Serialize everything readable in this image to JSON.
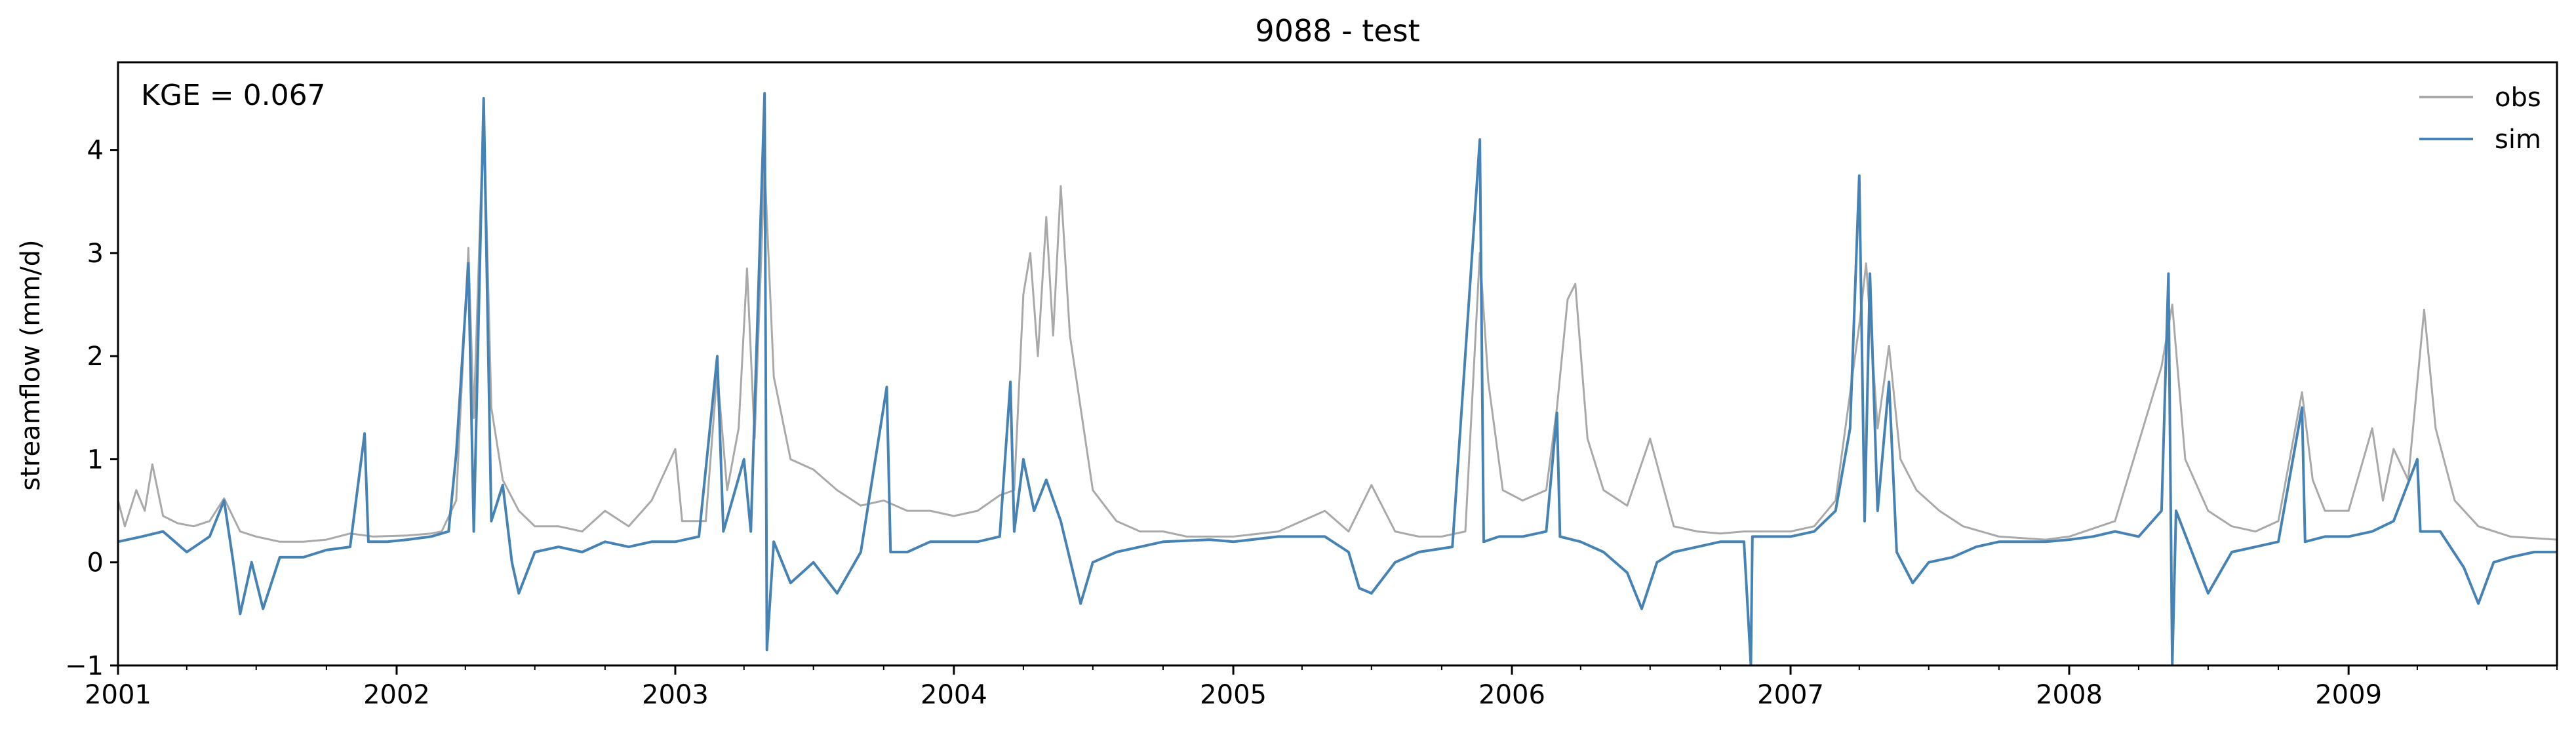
{
  "chart_data": {
    "type": "line",
    "title": "9088 - test",
    "xlabel": "",
    "ylabel": "streamflow (mm/d)",
    "annotation": "KGE = 0.067",
    "xlim": [
      "2001-01-01",
      "2009-10-01"
    ],
    "ylim": [
      -1,
      4.85
    ],
    "y_ticks": [
      -1,
      0,
      1,
      2,
      3,
      4
    ],
    "x_ticks": [
      {
        "date": "2001-01-01",
        "label": "2001"
      },
      {
        "date": "2002-01-01",
        "label": "2002"
      },
      {
        "date": "2003-01-01",
        "label": "2003"
      },
      {
        "date": "2004-01-01",
        "label": "2004"
      },
      {
        "date": "2005-01-01",
        "label": "2005"
      },
      {
        "date": "2006-01-01",
        "label": "2006"
      },
      {
        "date": "2007-01-01",
        "label": "2007"
      },
      {
        "date": "2008-01-01",
        "label": "2008"
      },
      {
        "date": "2009-01-01",
        "label": "2009"
      }
    ],
    "grid": false,
    "legend": "top-right",
    "series": [
      {
        "name": "obs",
        "color": "#a9a9a9",
        "points": [
          [
            "2001-01-01",
            0.6
          ],
          [
            "2001-01-10",
            0.35
          ],
          [
            "2001-01-25",
            0.7
          ],
          [
            "2001-02-05",
            0.5
          ],
          [
            "2001-02-15",
            0.95
          ],
          [
            "2001-03-01",
            0.45
          ],
          [
            "2001-03-20",
            0.38
          ],
          [
            "2001-04-10",
            0.35
          ],
          [
            "2001-05-01",
            0.4
          ],
          [
            "2001-05-20",
            0.62
          ],
          [
            "2001-06-10",
            0.3
          ],
          [
            "2001-07-01",
            0.25
          ],
          [
            "2001-08-01",
            0.2
          ],
          [
            "2001-09-01",
            0.2
          ],
          [
            "2001-10-01",
            0.22
          ],
          [
            "2001-11-01",
            0.28
          ],
          [
            "2001-12-01",
            0.25
          ],
          [
            "2002-01-15",
            0.26
          ],
          [
            "2002-02-15",
            0.28
          ],
          [
            "2002-03-01",
            0.3
          ],
          [
            "2002-03-20",
            0.6
          ],
          [
            "2002-04-05",
            3.05
          ],
          [
            "2002-04-12",
            1.4
          ],
          [
            "2002-04-25",
            4.4
          ],
          [
            "2002-05-05",
            1.5
          ],
          [
            "2002-05-20",
            0.8
          ],
          [
            "2002-06-10",
            0.5
          ],
          [
            "2002-07-01",
            0.35
          ],
          [
            "2002-08-01",
            0.35
          ],
          [
            "2002-09-01",
            0.3
          ],
          [
            "2002-10-01",
            0.5
          ],
          [
            "2002-11-01",
            0.35
          ],
          [
            "2002-12-01",
            0.6
          ],
          [
            "2003-01-01",
            1.1
          ],
          [
            "2003-01-10",
            0.4
          ],
          [
            "2003-02-10",
            0.4
          ],
          [
            "2003-02-25",
            1.85
          ],
          [
            "2003-03-10",
            0.7
          ],
          [
            "2003-03-25",
            1.3
          ],
          [
            "2003-04-05",
            2.85
          ],
          [
            "2003-04-15",
            1.2
          ],
          [
            "2003-04-28",
            3.85
          ],
          [
            "2003-05-10",
            1.8
          ],
          [
            "2003-06-01",
            1.0
          ],
          [
            "2003-07-01",
            0.9
          ],
          [
            "2003-08-01",
            0.7
          ],
          [
            "2003-09-01",
            0.55
          ],
          [
            "2003-10-01",
            0.6
          ],
          [
            "2003-11-01",
            0.5
          ],
          [
            "2003-12-01",
            0.5
          ],
          [
            "2004-01-01",
            0.45
          ],
          [
            "2004-02-01",
            0.5
          ],
          [
            "2004-03-01",
            0.65
          ],
          [
            "2004-03-20",
            0.7
          ],
          [
            "2004-04-01",
            2.6
          ],
          [
            "2004-04-10",
            3.0
          ],
          [
            "2004-04-20",
            2.0
          ],
          [
            "2004-05-01",
            3.35
          ],
          [
            "2004-05-10",
            2.2
          ],
          [
            "2004-05-20",
            3.65
          ],
          [
            "2004-06-01",
            2.2
          ],
          [
            "2004-07-01",
            0.7
          ],
          [
            "2004-08-01",
            0.4
          ],
          [
            "2004-09-01",
            0.3
          ],
          [
            "2004-10-01",
            0.3
          ],
          [
            "2004-11-01",
            0.25
          ],
          [
            "2004-12-01",
            0.25
          ],
          [
            "2005-01-01",
            0.25
          ],
          [
            "2005-03-01",
            0.3
          ],
          [
            "2005-05-01",
            0.5
          ],
          [
            "2005-06-01",
            0.3
          ],
          [
            "2005-07-01",
            0.75
          ],
          [
            "2005-08-01",
            0.3
          ],
          [
            "2005-09-01",
            0.25
          ],
          [
            "2005-10-01",
            0.25
          ],
          [
            "2005-11-01",
            0.3
          ],
          [
            "2005-11-20",
            3.0
          ],
          [
            "2005-12-01",
            1.75
          ],
          [
            "2005-12-20",
            0.7
          ],
          [
            "2006-01-15",
            0.6
          ],
          [
            "2006-02-15",
            0.7
          ],
          [
            "2006-03-01",
            1.5
          ],
          [
            "2006-03-15",
            2.55
          ],
          [
            "2006-03-25",
            2.7
          ],
          [
            "2006-04-10",
            1.2
          ],
          [
            "2006-05-01",
            0.7
          ],
          [
            "2006-06-01",
            0.55
          ],
          [
            "2006-07-01",
            1.2
          ],
          [
            "2006-08-01",
            0.35
          ],
          [
            "2006-09-01",
            0.3
          ],
          [
            "2006-10-01",
            0.28
          ],
          [
            "2006-11-01",
            0.3
          ],
          [
            "2006-12-01",
            0.3
          ],
          [
            "2007-01-01",
            0.3
          ],
          [
            "2007-02-01",
            0.35
          ],
          [
            "2007-03-01",
            0.6
          ],
          [
            "2007-04-01",
            2.3
          ],
          [
            "2007-04-10",
            2.9
          ],
          [
            "2007-04-25",
            1.3
          ],
          [
            "2007-05-10",
            2.1
          ],
          [
            "2007-05-25",
            1.0
          ],
          [
            "2007-06-15",
            0.7
          ],
          [
            "2007-07-15",
            0.5
          ],
          [
            "2007-08-15",
            0.35
          ],
          [
            "2007-10-01",
            0.25
          ],
          [
            "2007-12-01",
            0.22
          ],
          [
            "2008-01-01",
            0.25
          ],
          [
            "2008-03-01",
            0.4
          ],
          [
            "2008-05-01",
            1.9
          ],
          [
            "2008-05-15",
            2.5
          ],
          [
            "2008-06-01",
            1.0
          ],
          [
            "2008-07-01",
            0.5
          ],
          [
            "2008-08-01",
            0.35
          ],
          [
            "2008-09-01",
            0.3
          ],
          [
            "2008-10-01",
            0.4
          ],
          [
            "2008-11-01",
            1.65
          ],
          [
            "2008-11-15",
            0.8
          ],
          [
            "2008-12-01",
            0.5
          ],
          [
            "2009-01-01",
            0.5
          ],
          [
            "2009-02-01",
            1.3
          ],
          [
            "2009-02-15",
            0.6
          ],
          [
            "2009-03-01",
            1.1
          ],
          [
            "2009-03-20",
            0.8
          ],
          [
            "2009-04-10",
            2.45
          ],
          [
            "2009-04-25",
            1.3
          ],
          [
            "2009-05-20",
            0.6
          ],
          [
            "2009-06-20",
            0.35
          ],
          [
            "2009-08-01",
            0.25
          ],
          [
            "2009-10-01",
            0.22
          ]
        ]
      },
      {
        "name": "sim",
        "color": "#4682b4",
        "points": [
          [
            "2001-01-01",
            0.2
          ],
          [
            "2001-02-01",
            0.25
          ],
          [
            "2001-03-01",
            0.3
          ],
          [
            "2001-04-01",
            0.1
          ],
          [
            "2001-05-01",
            0.25
          ],
          [
            "2001-05-20",
            0.6
          ],
          [
            "2001-06-01",
            0.0
          ],
          [
            "2001-06-10",
            -0.5
          ],
          [
            "2001-06-25",
            0.0
          ],
          [
            "2001-07-10",
            -0.45
          ],
          [
            "2001-08-01",
            0.05
          ],
          [
            "2001-09-01",
            0.05
          ],
          [
            "2001-10-01",
            0.12
          ],
          [
            "2001-11-01",
            0.15
          ],
          [
            "2001-11-20",
            1.25
          ],
          [
            "2001-11-25",
            0.2
          ],
          [
            "2001-12-20",
            0.2
          ],
          [
            "2002-01-15",
            0.22
          ],
          [
            "2002-02-15",
            0.25
          ],
          [
            "2002-03-10",
            0.3
          ],
          [
            "2002-03-20",
            1.05
          ],
          [
            "2002-04-05",
            2.9
          ],
          [
            "2002-04-12",
            0.3
          ],
          [
            "2002-04-25",
            4.5
          ],
          [
            "2002-05-05",
            0.4
          ],
          [
            "2002-05-20",
            0.75
          ],
          [
            "2002-06-01",
            0.0
          ],
          [
            "2002-06-10",
            -0.3
          ],
          [
            "2002-07-01",
            0.1
          ],
          [
            "2002-08-01",
            0.15
          ],
          [
            "2002-09-01",
            0.1
          ],
          [
            "2002-10-01",
            0.2
          ],
          [
            "2002-11-01",
            0.15
          ],
          [
            "2002-12-01",
            0.2
          ],
          [
            "2003-01-01",
            0.2
          ],
          [
            "2003-02-01",
            0.25
          ],
          [
            "2003-02-25",
            2.0
          ],
          [
            "2003-03-05",
            0.3
          ],
          [
            "2003-04-01",
            1.0
          ],
          [
            "2003-04-10",
            0.3
          ],
          [
            "2003-04-28",
            4.55
          ],
          [
            "2003-05-01",
            -0.85
          ],
          [
            "2003-05-10",
            0.2
          ],
          [
            "2003-06-01",
            -0.2
          ],
          [
            "2003-07-01",
            0.0
          ],
          [
            "2003-08-01",
            -0.3
          ],
          [
            "2003-09-01",
            0.1
          ],
          [
            "2003-10-05",
            1.7
          ],
          [
            "2003-10-10",
            0.1
          ],
          [
            "2003-11-01",
            0.1
          ],
          [
            "2003-12-01",
            0.2
          ],
          [
            "2004-01-01",
            0.2
          ],
          [
            "2004-02-01",
            0.2
          ],
          [
            "2004-03-01",
            0.25
          ],
          [
            "2004-03-15",
            1.75
          ],
          [
            "2004-03-20",
            0.3
          ],
          [
            "2004-04-01",
            1.0
          ],
          [
            "2004-04-15",
            0.5
          ],
          [
            "2004-05-01",
            0.8
          ],
          [
            "2004-05-20",
            0.4
          ],
          [
            "2004-06-15",
            -0.4
          ],
          [
            "2004-07-01",
            0.0
          ],
          [
            "2004-08-01",
            0.1
          ],
          [
            "2004-09-01",
            0.15
          ],
          [
            "2004-10-01",
            0.2
          ],
          [
            "2004-12-01",
            0.22
          ],
          [
            "2005-01-01",
            0.2
          ],
          [
            "2005-03-01",
            0.25
          ],
          [
            "2005-05-01",
            0.25
          ],
          [
            "2005-06-01",
            0.1
          ],
          [
            "2005-06-15",
            -0.25
          ],
          [
            "2005-07-01",
            -0.3
          ],
          [
            "2005-08-01",
            0.0
          ],
          [
            "2005-09-01",
            0.1
          ],
          [
            "2005-10-15",
            0.15
          ],
          [
            "2005-11-20",
            4.1
          ],
          [
            "2005-11-25",
            0.2
          ],
          [
            "2005-12-15",
            0.25
          ],
          [
            "2006-01-15",
            0.25
          ],
          [
            "2006-02-15",
            0.3
          ],
          [
            "2006-03-01",
            1.45
          ],
          [
            "2006-03-05",
            0.25
          ],
          [
            "2006-04-01",
            0.2
          ],
          [
            "2006-05-01",
            0.1
          ],
          [
            "2006-06-01",
            -0.1
          ],
          [
            "2006-06-20",
            -0.45
          ],
          [
            "2006-07-10",
            0.0
          ],
          [
            "2006-08-01",
            0.1
          ],
          [
            "2006-09-01",
            0.15
          ],
          [
            "2006-10-01",
            0.2
          ],
          [
            "2006-11-01",
            0.2
          ],
          [
            "2006-11-10",
            -1.0
          ],
          [
            "2006-11-12",
            0.25
          ],
          [
            "2006-12-01",
            0.25
          ],
          [
            "2007-01-01",
            0.25
          ],
          [
            "2007-02-01",
            0.3
          ],
          [
            "2007-03-01",
            0.5
          ],
          [
            "2007-03-20",
            1.3
          ],
          [
            "2007-04-01",
            3.75
          ],
          [
            "2007-04-08",
            0.4
          ],
          [
            "2007-04-15",
            2.8
          ],
          [
            "2007-04-25",
            0.5
          ],
          [
            "2007-05-10",
            1.75
          ],
          [
            "2007-05-20",
            0.1
          ],
          [
            "2007-06-10",
            -0.2
          ],
          [
            "2007-07-01",
            0.0
          ],
          [
            "2007-08-01",
            0.05
          ],
          [
            "2007-09-01",
            0.15
          ],
          [
            "2007-10-01",
            0.2
          ],
          [
            "2007-12-01",
            0.2
          ],
          [
            "2008-01-01",
            0.22
          ],
          [
            "2008-02-01",
            0.25
          ],
          [
            "2008-03-01",
            0.3
          ],
          [
            "2008-04-01",
            0.25
          ],
          [
            "2008-05-01",
            0.5
          ],
          [
            "2008-05-10",
            2.8
          ],
          [
            "2008-05-15",
            -1.0
          ],
          [
            "2008-05-20",
            0.5
          ],
          [
            "2008-06-15",
            0.0
          ],
          [
            "2008-07-01",
            -0.3
          ],
          [
            "2008-08-01",
            0.1
          ],
          [
            "2008-09-01",
            0.15
          ],
          [
            "2008-10-01",
            0.2
          ],
          [
            "2008-11-01",
            1.5
          ],
          [
            "2008-11-05",
            0.2
          ],
          [
            "2008-12-01",
            0.25
          ],
          [
            "2009-01-01",
            0.25
          ],
          [
            "2009-02-01",
            0.3
          ],
          [
            "2009-03-01",
            0.4
          ],
          [
            "2009-04-01",
            1.0
          ],
          [
            "2009-04-05",
            0.3
          ],
          [
            "2009-05-01",
            0.3
          ],
          [
            "2009-06-01",
            -0.05
          ],
          [
            "2009-06-20",
            -0.4
          ],
          [
            "2009-07-10",
            0.0
          ],
          [
            "2009-08-01",
            0.05
          ],
          [
            "2009-09-01",
            0.1
          ],
          [
            "2009-10-01",
            0.1
          ]
        ]
      }
    ]
  }
}
